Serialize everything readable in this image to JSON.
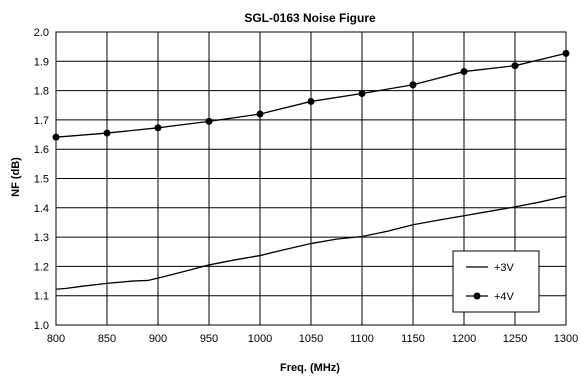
{
  "chart_data": {
    "type": "line",
    "title": "SGL-0163 Noise Figure",
    "xlabel": "Freq. (MHz)",
    "ylabel": "NF (dB)",
    "xlim": [
      800,
      1300
    ],
    "ylim": [
      1.0,
      2.0
    ],
    "xticks": [
      800,
      850,
      900,
      950,
      1000,
      1050,
      1100,
      1150,
      1200,
      1250,
      1300
    ],
    "yticks": [
      1.0,
      1.1,
      1.2,
      1.3,
      1.4,
      1.5,
      1.6,
      1.7,
      1.8,
      1.9,
      2.0
    ],
    "xtick_labels": [
      "800",
      "850",
      "900",
      "950",
      "1000",
      "1050",
      "1100",
      "1150",
      "1200",
      "1250",
      "1300"
    ],
    "ytick_labels": [
      "1.0",
      "1.1",
      "1.2",
      "1.3",
      "1.4",
      "1.5",
      "1.6",
      "1.7",
      "1.8",
      "1.9",
      "2.0"
    ],
    "grid": true,
    "legend": "right",
    "series": [
      {
        "name": "+3V",
        "marker": "none",
        "x": [
          800,
          810,
          825,
          850,
          875,
          890,
          900,
          925,
          950,
          975,
          1000,
          1025,
          1050,
          1075,
          1100,
          1125,
          1150,
          1175,
          1200,
          1225,
          1250,
          1275,
          1300
        ],
        "y": [
          1.122,
          1.125,
          1.132,
          1.142,
          1.15,
          1.152,
          1.16,
          1.182,
          1.205,
          1.222,
          1.237,
          1.258,
          1.278,
          1.293,
          1.302,
          1.32,
          1.342,
          1.358,
          1.373,
          1.388,
          1.403,
          1.42,
          1.44
        ]
      },
      {
        "name": "+4V",
        "marker": "circle",
        "x": [
          800,
          850,
          900,
          950,
          1000,
          1050,
          1100,
          1150,
          1200,
          1250,
          1300
        ],
        "y": [
          1.641,
          1.655,
          1.673,
          1.695,
          1.72,
          1.763,
          1.79,
          1.82,
          1.865,
          1.885,
          1.927
        ]
      }
    ]
  }
}
